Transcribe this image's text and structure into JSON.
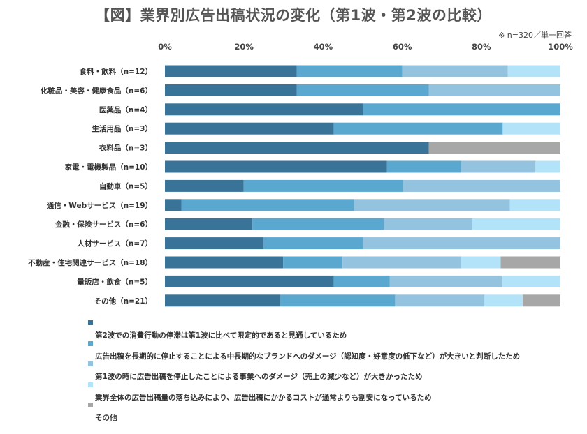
{
  "title": "【図】業界別広告出稿状況の変化（第1波・第2波の比較）",
  "note": "※ n=320／単一回答",
  "chart_data": {
    "type": "bar",
    "orientation": "horizontal",
    "stacked": "percent",
    "xlim": [
      0,
      100
    ],
    "x_ticks": [
      "0%",
      "20%",
      "40%",
      "60%",
      "80%",
      "100%"
    ],
    "grid": false,
    "legend_position": "bottom",
    "categories": [
      "食料・飲料（n=12）",
      "化粧品・美容・健康食品（n=6）",
      "医薬品（n=4）",
      "生活用品（n=3）",
      "衣料品（n=3）",
      "家電・電機製品（n=10）",
      "自動車（n=5）",
      "通信・Webサービス（n=19）",
      "金融・保険サービス（n=6）",
      "人材サービス（n=7）",
      "不動産・住宅関連サービス（n=18）",
      "量販店・飲食（n=5）",
      "その他（n=21）"
    ],
    "series": [
      {
        "name": "第2波での消費行動の停滞は第1波に比べて限定的であると見通しているため",
        "color": "#3a7398",
        "values": [
          33.3,
          33.3,
          50.0,
          42.7,
          66.7,
          56.1,
          19.9,
          4.2,
          22.1,
          24.9,
          29.9,
          42.7,
          29.1
        ]
      },
      {
        "name": "広告出稿を長期的に停止することによる中長期的なブランドへのダメージ（認知度・好意度の低下など）が大きいと判断したため",
        "color": "#5aa8d0",
        "values": [
          26.7,
          33.4,
          50.0,
          42.7,
          0,
          18.8,
          40.3,
          43.6,
          33.2,
          25.2,
          15.0,
          14.1,
          29.1
        ]
      },
      {
        "name": "第1波の時に広告出稿を停止したことによる事業へのダメージ（売上の減少など）が大きかったため",
        "color": "#93c3df",
        "values": [
          26.7,
          33.3,
          0,
          0,
          0,
          18.8,
          39.8,
          39.4,
          22.3,
          49.9,
          30.0,
          28.4,
          22.6
        ]
      },
      {
        "name": "業界全体の広告出稿量の落ち込みにより、広告出稿にかかるコストが通常よりも割安になっているため",
        "color": "#b3e3f8",
        "values": [
          13.3,
          0,
          0,
          14.6,
          0,
          6.3,
          0,
          12.8,
          22.4,
          0,
          10.0,
          14.8,
          9.7
        ]
      },
      {
        "name": "その他",
        "color": "#a7a7a7",
        "values": [
          0,
          0,
          0,
          0,
          33.3,
          0,
          0,
          0,
          0,
          0,
          15.1,
          0,
          9.5
        ]
      }
    ]
  }
}
